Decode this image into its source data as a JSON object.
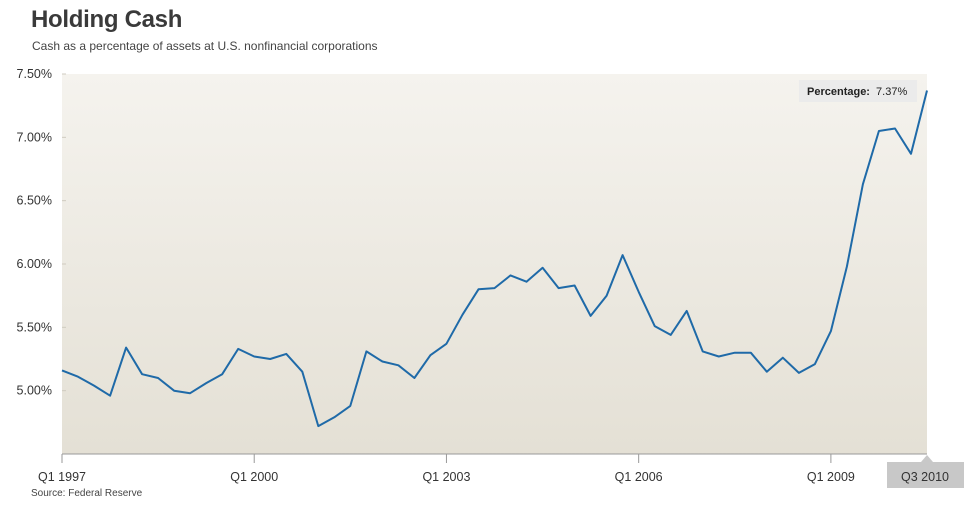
{
  "header": {
    "title": "Holding Cash",
    "subtitle": "Cash as a percentage of assets at U.S. nonfinancial corporations"
  },
  "footer": {
    "source": "Source: Federal Reserve"
  },
  "tooltip": {
    "label": "Percentage:",
    "value": "7.37%"
  },
  "colors": {
    "line": "#1f6aa8",
    "plot_top": "#f5f3ee",
    "plot_bottom": "#e4e0d5",
    "highlight": "#c8c8c8"
  },
  "chart_data": {
    "type": "line",
    "title": "Holding Cash",
    "subtitle": "Cash as a percentage of assets at U.S. nonfinancial corporations",
    "xlabel": "",
    "ylabel": "",
    "ylim": [
      4.5,
      7.5
    ],
    "yticks": [
      5.0,
      5.5,
      6.0,
      6.5,
      7.0,
      7.5
    ],
    "ytick_labels": [
      "5.00%",
      "5.50%",
      "6.00%",
      "6.50%",
      "7.00%",
      "7.50%"
    ],
    "x_start": "Q1 1997",
    "x_end": "Q3 2010",
    "xticks": [
      {
        "index": 0,
        "label": "Q1 1997"
      },
      {
        "index": 12,
        "label": "Q1 2000"
      },
      {
        "index": 24,
        "label": "Q1 2003"
      },
      {
        "index": 36,
        "label": "Q1 2006"
      },
      {
        "index": 48,
        "label": "Q1 2009"
      },
      {
        "index": 54,
        "label": "Q3 2010"
      }
    ],
    "series": [
      {
        "name": "Percentage",
        "values": [
          5.16,
          5.11,
          5.04,
          4.96,
          5.34,
          5.13,
          5.1,
          5.0,
          4.98,
          5.06,
          5.13,
          5.33,
          5.27,
          5.25,
          5.29,
          5.15,
          4.72,
          4.79,
          4.88,
          5.31,
          5.23,
          5.2,
          5.1,
          5.28,
          5.37,
          5.6,
          5.8,
          5.81,
          5.91,
          5.86,
          5.97,
          5.81,
          5.83,
          5.59,
          5.75,
          6.07,
          5.78,
          5.51,
          5.44,
          5.63,
          5.31,
          5.27,
          5.3,
          5.3,
          5.15,
          5.26,
          5.14,
          5.21,
          5.47,
          5.98,
          6.63,
          7.05,
          7.07,
          6.87,
          7.37
        ]
      }
    ]
  }
}
